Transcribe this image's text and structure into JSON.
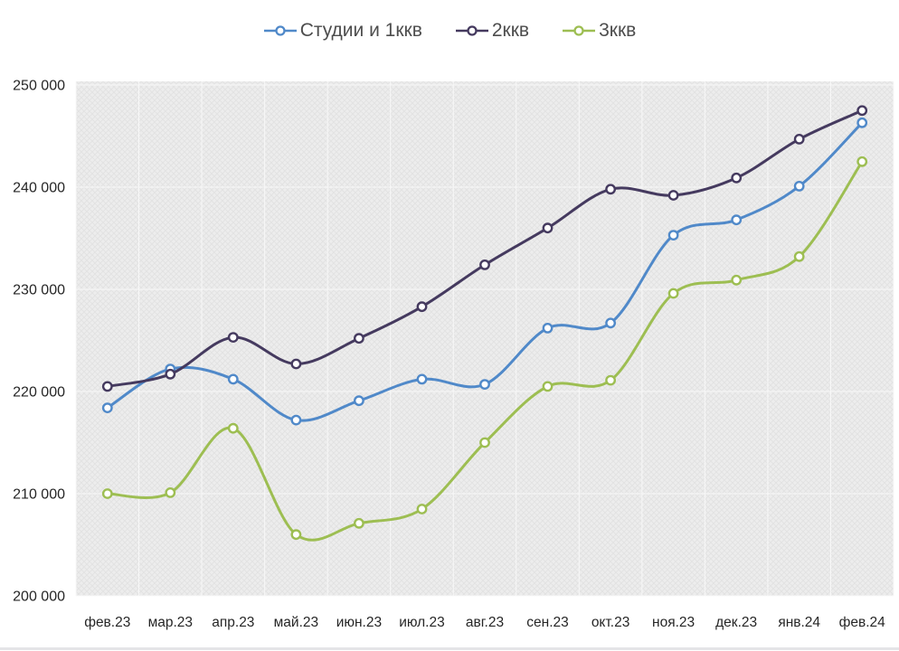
{
  "chart_data": {
    "type": "line",
    "title": "",
    "xlabel": "",
    "ylabel": "",
    "categories": [
      "фев.23",
      "мар.23",
      "апр.23",
      "май.23",
      "июн.23",
      "июл.23",
      "авг.23",
      "сен.23",
      "окт.23",
      "ноя.23",
      "дек.23",
      "янв.24",
      "фев.24"
    ],
    "series": [
      {
        "name": "Студии и 1ккв",
        "color": "#5089c9",
        "values": [
          218400,
          222200,
          221200,
          217200,
          219100,
          221200,
          220700,
          226200,
          226700,
          235300,
          236800,
          240100,
          246300
        ]
      },
      {
        "name": "2ккв",
        "color": "#453a5f",
        "values": [
          220500,
          221700,
          225300,
          222700,
          225200,
          228300,
          232400,
          236000,
          239800,
          239200,
          240900,
          244700,
          247500
        ]
      },
      {
        "name": "3ккв",
        "color": "#9dbe52",
        "values": [
          210000,
          210100,
          216400,
          206000,
          207100,
          208500,
          215000,
          220500,
          221100,
          229600,
          230900,
          233200,
          242500
        ]
      }
    ],
    "ylim": [
      200000,
      250000
    ],
    "ytick_step": 10000,
    "ytick_labels": [
      "200 000",
      "210 000",
      "220 000",
      "230 000",
      "240 000",
      "250 000"
    ],
    "grid": true,
    "legend_position": "top",
    "smooth_lines": true,
    "marker_style": "hollow-circle",
    "plot_background": "#ededed",
    "gridline_color": "#f8f8f8",
    "axis_text_color": "#262626"
  }
}
